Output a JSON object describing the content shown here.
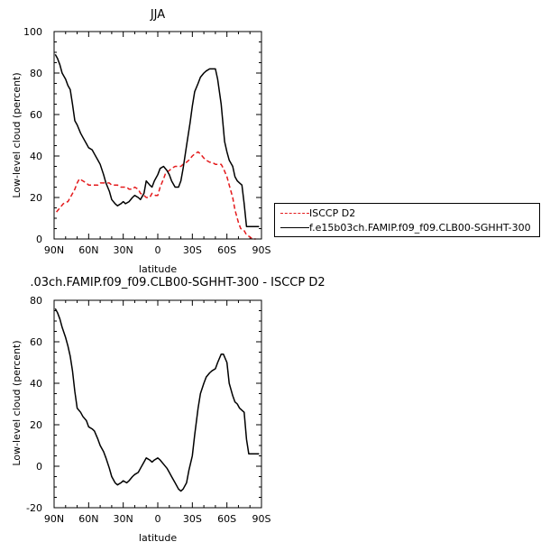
{
  "chart_data": [
    {
      "type": "line",
      "title": "JJA",
      "xlabel": "latitude",
      "ylabel": "Low-level cloud (percent)",
      "xlim": [
        90,
        -90
      ],
      "ylim": [
        0,
        100
      ],
      "xticks": [
        {
          "value": 90,
          "label": "90N"
        },
        {
          "value": 60,
          "label": "60N"
        },
        {
          "value": 30,
          "label": "30N"
        },
        {
          "value": 0,
          "label": "0"
        },
        {
          "value": -30,
          "label": "30S"
        },
        {
          "value": -60,
          "label": "60S"
        },
        {
          "value": -90,
          "label": "90S"
        }
      ],
      "yticks": [
        0,
        20,
        40,
        60,
        80,
        100
      ],
      "legend": {
        "placement": "right"
      },
      "series": [
        {
          "name": "ISCCP D2",
          "color": "#e41a1c",
          "style": "dashed",
          "x": [
            88,
            85,
            82,
            78,
            75,
            72,
            70,
            68,
            65,
            62,
            60,
            57,
            55,
            52,
            50,
            47,
            45,
            42,
            40,
            37,
            35,
            32,
            30,
            27,
            25,
            22,
            20,
            17,
            15,
            12,
            10,
            7,
            5,
            2,
            0,
            -2,
            -5,
            -7,
            -10,
            -12,
            -15,
            -17,
            -20,
            -22,
            -25,
            -27,
            -30,
            -32,
            -35,
            -37,
            -40,
            -42,
            -45,
            -47,
            -50,
            -52,
            -55,
            -57,
            -60,
            -62,
            -65,
            -67,
            -70,
            -72,
            -75,
            -77,
            -80,
            -82,
            -85
          ],
          "y": [
            13,
            15,
            17,
            18,
            21,
            24,
            27,
            29,
            28,
            27,
            26,
            26,
            26,
            26,
            27,
            27,
            27,
            27,
            26,
            26,
            26,
            25,
            25,
            25,
            24,
            24,
            25,
            24,
            22,
            21,
            20,
            20,
            22,
            21,
            21,
            25,
            29,
            32,
            33,
            34,
            35,
            35,
            35,
            36,
            37,
            38,
            40,
            41,
            42,
            41,
            39,
            38,
            37,
            37,
            36,
            36,
            36,
            34,
            30,
            26,
            20,
            14,
            8,
            5,
            4,
            2,
            1,
            0,
            0
          ]
        },
        {
          "name": "f.e15b03ch.FAMIP.f09_f09.CLB00-SGHHT-300",
          "color": "#000000",
          "style": "solid",
          "x": [
            89,
            87,
            85,
            83,
            80,
            78,
            76,
            74,
            72,
            70,
            67,
            65,
            62,
            60,
            57,
            55,
            52,
            50,
            47,
            45,
            42,
            40,
            37,
            35,
            32,
            30,
            28,
            25,
            22,
            20,
            17,
            15,
            12,
            10,
            7,
            5,
            3,
            0,
            -2,
            -5,
            -8,
            -10,
            -12,
            -15,
            -18,
            -20,
            -22,
            -25,
            -28,
            -30,
            -32,
            -35,
            -37,
            -40,
            -42,
            -45,
            -47,
            -50,
            -52,
            -55,
            -58,
            -60,
            -62,
            -65,
            -67,
            -69,
            -71,
            -73,
            -75,
            -77,
            -79,
            -81,
            -83,
            -85,
            -87,
            -88
          ],
          "y": [
            89,
            87,
            84,
            80,
            77,
            74,
            72,
            65,
            57,
            55,
            51,
            49,
            46,
            44,
            43,
            41,
            38,
            36,
            31,
            27,
            23,
            19,
            17,
            16,
            17,
            18,
            17,
            18,
            20,
            21,
            20,
            19,
            22,
            28,
            26,
            25,
            28,
            31,
            34,
            35,
            33,
            31,
            28,
            25,
            25,
            28,
            34,
            45,
            56,
            64,
            71,
            75,
            78,
            80,
            81,
            82,
            82,
            82,
            77,
            65,
            47,
            42,
            38,
            35,
            30,
            28,
            27,
            26,
            17,
            6,
            6,
            6,
            6,
            6,
            6,
            6
          ]
        }
      ]
    },
    {
      "type": "line",
      "title": ".03ch.FAMIP.f09_f09.CLB00-SGHHT-300 - ISCCP D2",
      "xlabel": "latitude",
      "ylabel": "Low-level cloud (percent)",
      "xlim": [
        90,
        -90
      ],
      "ylim": [
        -20,
        80
      ],
      "xticks": [
        {
          "value": 90,
          "label": "90N"
        },
        {
          "value": 60,
          "label": "60N"
        },
        {
          "value": 30,
          "label": "30N"
        },
        {
          "value": 0,
          "label": "0"
        },
        {
          "value": -30,
          "label": "30S"
        },
        {
          "value": -60,
          "label": "60S"
        },
        {
          "value": -90,
          "label": "90S"
        }
      ],
      "yticks": [
        -20,
        0,
        20,
        40,
        60,
        80
      ],
      "series": [
        {
          "color": "#000000",
          "style": "solid",
          "x": [
            89,
            87,
            85,
            83,
            80,
            78,
            76,
            74,
            72,
            70,
            67,
            65,
            62,
            60,
            57,
            55,
            52,
            50,
            47,
            45,
            42,
            40,
            37,
            35,
            32,
            30,
            27,
            25,
            22,
            20,
            17,
            15,
            12,
            10,
            7,
            5,
            3,
            0,
            -2,
            -5,
            -8,
            -10,
            -12,
            -15,
            -18,
            -20,
            -22,
            -25,
            -27,
            -30,
            -32,
            -35,
            -37,
            -40,
            -42,
            -45,
            -47,
            -50,
            -52,
            -55,
            -57,
            -60,
            -62,
            -65,
            -67,
            -69,
            -71,
            -73,
            -75,
            -77,
            -79,
            -81,
            -83,
            -85,
            -87,
            -88
          ],
          "y": [
            76,
            74,
            71,
            67,
            62,
            58,
            53,
            46,
            36,
            28,
            26,
            24,
            22,
            19,
            18,
            17,
            13,
            10,
            7,
            4,
            -1,
            -5,
            -8,
            -9,
            -8,
            -7,
            -8,
            -7,
            -5,
            -4,
            -3,
            -1,
            2,
            4,
            3,
            2,
            3,
            4,
            3,
            1,
            -1,
            -3,
            -5,
            -8,
            -11,
            -12,
            -11,
            -8,
            -2,
            5,
            15,
            28,
            35,
            40,
            43,
            45,
            46,
            47,
            50,
            54,
            54,
            50,
            40,
            34,
            31,
            30,
            28,
            27,
            26,
            13,
            6,
            6,
            6,
            6,
            6,
            6
          ]
        }
      ]
    }
  ]
}
